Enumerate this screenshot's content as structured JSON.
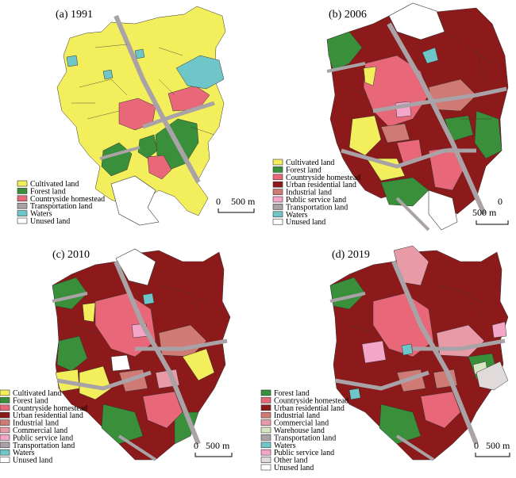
{
  "colors": {
    "cultivated": "#f3ee5c",
    "forest": "#3a8f3a",
    "countryside": "#e8687a",
    "urban_res": "#8c1a1a",
    "industrial": "#d07a76",
    "commercial": "#e89aa6",
    "public": "#f4a6c8",
    "transport": "#a9a2a6",
    "waters": "#6fc6c8",
    "warehouse": "#d6e8c2",
    "other": "#e0dada",
    "unused": "#ffffff"
  },
  "panels": [
    {
      "title": "(a) 1991",
      "legend": [
        {
          "label": "Cultivated land",
          "color": "cultivated"
        },
        {
          "label": "Forest land",
          "color": "forest"
        },
        {
          "label": "Countryside homestead",
          "color": "countryside"
        },
        {
          "label": "Transportation land",
          "color": "transport"
        },
        {
          "label": "Waters",
          "color": "waters"
        },
        {
          "label": "Unused land",
          "color": "unused"
        }
      ],
      "scale_label": "500 m",
      "scale_zero": "0"
    },
    {
      "title": "(b) 2006",
      "legend": [
        {
          "label": "Cultivated land",
          "color": "cultivated"
        },
        {
          "label": "Forest land",
          "color": "forest"
        },
        {
          "label": "Countryside homestead",
          "color": "countryside"
        },
        {
          "label": "Urban residential land",
          "color": "urban_res"
        },
        {
          "label": "Industrial land",
          "color": "industrial"
        },
        {
          "label": "Public service land",
          "color": "public"
        },
        {
          "label": "Transportation land",
          "color": "transport"
        },
        {
          "label": "Waters",
          "color": "waters"
        },
        {
          "label": "Unused land",
          "color": "unused"
        }
      ],
      "scale_label": "500 m",
      "scale_zero": "0"
    },
    {
      "title": "(c) 2010",
      "legend": [
        {
          "label": "Cultivated land",
          "color": "cultivated"
        },
        {
          "label": "Forest land",
          "color": "forest"
        },
        {
          "label": "Countryside homestead",
          "color": "countryside"
        },
        {
          "label": "Urban residential land",
          "color": "urban_res"
        },
        {
          "label": "Industrial land",
          "color": "industrial"
        },
        {
          "label": "Commercial land",
          "color": "commercial"
        },
        {
          "label": "Public service land",
          "color": "public"
        },
        {
          "label": "Transportation land",
          "color": "transport"
        },
        {
          "label": "Waters",
          "color": "waters"
        },
        {
          "label": "Unused land",
          "color": "unused"
        }
      ],
      "scale_label": "500 m",
      "scale_zero": "0"
    },
    {
      "title": "(d) 2019",
      "legend": [
        {
          "label": "Forest land",
          "color": "forest"
        },
        {
          "label": "Countryside homestead",
          "color": "countryside"
        },
        {
          "label": "Urban residential land",
          "color": "urban_res"
        },
        {
          "label": "Industrial land",
          "color": "industrial"
        },
        {
          "label": "Commercial land",
          "color": "commercial"
        },
        {
          "label": "Warehouse land",
          "color": "warehouse"
        },
        {
          "label": "Transportation land",
          "color": "transport"
        },
        {
          "label": "Waters",
          "color": "waters"
        },
        {
          "label": "Public service land",
          "color": "public"
        },
        {
          "label": "Other land",
          "color": "other"
        },
        {
          "label": "Unused land",
          "color": "unused"
        }
      ],
      "scale_label": "500 m",
      "scale_zero": "0"
    }
  ]
}
